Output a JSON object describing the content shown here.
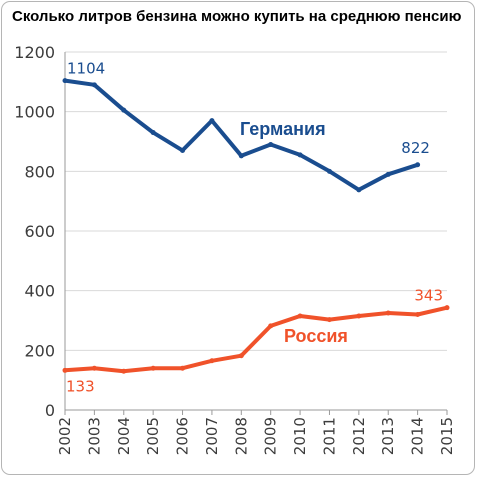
{
  "title": "Сколько литров бензина можно купить на среднюю пенсию",
  "chart_data": {
    "type": "line",
    "x": [
      2002,
      2003,
      2004,
      2005,
      2006,
      2007,
      2008,
      2009,
      2010,
      2011,
      2012,
      2013,
      2014,
      2015
    ],
    "ylim": [
      0,
      1200
    ],
    "yticks": [
      0,
      200,
      400,
      600,
      800,
      1000,
      1200
    ],
    "grid": "horizontal",
    "series": [
      {
        "name": "Германия",
        "color": "#1a4d8f",
        "values": [
          1104,
          1090,
          1005,
          930,
          870,
          970,
          852,
          890,
          855,
          800,
          738,
          790,
          822,
          null
        ],
        "labels": [
          {
            "index": 0,
            "text": "1104"
          },
          {
            "index": 12,
            "text": "822"
          }
        ]
      },
      {
        "name": "Россия",
        "color": "#f0522a",
        "values": [
          133,
          140,
          130,
          140,
          140,
          165,
          182,
          282,
          315,
          303,
          315,
          325,
          320,
          343
        ],
        "labels": [
          {
            "index": 0,
            "text": "133"
          },
          {
            "index": 13,
            "text": "343"
          }
        ]
      }
    ]
  }
}
